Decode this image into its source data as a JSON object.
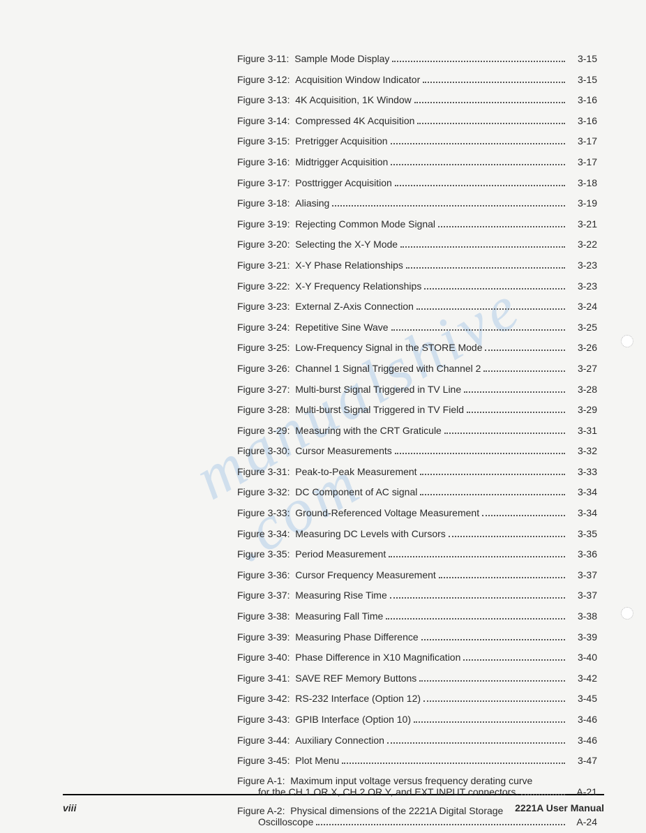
{
  "watermark_text": "manualshive .com",
  "footer": {
    "page_number": "viii",
    "manual_title": "2221A User Manual"
  },
  "entries": [
    {
      "label": "Figure 3-11:",
      "title": "Sample Mode Display",
      "page": "3-15"
    },
    {
      "label": "Figure 3-12:",
      "title": "Acquisition Window Indicator",
      "page": "3-15"
    },
    {
      "label": "Figure 3-13:",
      "title": "4K Acquisition, 1K Window",
      "page": "3-16"
    },
    {
      "label": "Figure 3-14:",
      "title": "Compressed 4K Acquisition",
      "page": "3-16"
    },
    {
      "label": "Figure 3-15:",
      "title": "Pretrigger Acquisition",
      "page": "3-17"
    },
    {
      "label": "Figure 3-16:",
      "title": "Midtrigger Acquisition",
      "page": "3-17"
    },
    {
      "label": "Figure 3-17:",
      "title": "Posttrigger Acquisition",
      "page": "3-18"
    },
    {
      "label": "Figure 3-18:",
      "title": "Aliasing",
      "page": "3-19"
    },
    {
      "label": "Figure 3-19:",
      "title": "Rejecting Common Mode Signal",
      "page": "3-21"
    },
    {
      "label": "Figure 3-20:",
      "title": "Selecting the X-Y Mode",
      "page": "3-22"
    },
    {
      "label": "Figure 3-21:",
      "title": "X-Y Phase Relationships",
      "page": "3-23"
    },
    {
      "label": "Figure 3-22:",
      "title": "X-Y Frequency Relationships",
      "page": "3-23"
    },
    {
      "label": "Figure 3-23:",
      "title": "External Z-Axis Connection",
      "page": "3-24"
    },
    {
      "label": "Figure 3-24:",
      "title": "Repetitive Sine Wave",
      "page": "3-25"
    },
    {
      "label": "Figure 3-25:",
      "title": "Low-Frequency Signal in the STORE Mode",
      "page": "3-26"
    },
    {
      "label": "Figure 3-26:",
      "title": "Channel 1 Signal Triggered with Channel 2",
      "page": "3-27"
    },
    {
      "label": "Figure 3-27:",
      "title": "Multi-burst Signal Triggered in TV Line",
      "page": "3-28"
    },
    {
      "label": "Figure 3-28:",
      "title": "Multi-burst Signal Triggered in TV Field",
      "page": "3-29"
    },
    {
      "label": "Figure 3-29:",
      "title": "Measuring with the CRT Graticule",
      "page": "3-31"
    },
    {
      "label": "Figure 3-30:",
      "title": "Cursor Measurements",
      "page": "3-32"
    },
    {
      "label": "Figure 3-31:",
      "title": "Peak-to-Peak Measurement",
      "page": "3-33"
    },
    {
      "label": "Figure 3-32:",
      "title": "DC Component of AC signal",
      "page": "3-34"
    },
    {
      "label": "Figure 3-33:",
      "title": "Ground-Referenced Voltage Measurement",
      "page": "3-34"
    },
    {
      "label": "Figure 3-34:",
      "title": "Measuring DC Levels with Cursors",
      "page": "3-35"
    },
    {
      "label": "Figure 3-35:",
      "title": "Period Measurement",
      "page": "3-36"
    },
    {
      "label": "Figure 3-36:",
      "title": "Cursor Frequency Measurement",
      "page": "3-37"
    },
    {
      "label": "Figure 3-37:",
      "title": "Measuring Rise Time",
      "page": "3-37"
    },
    {
      "label": "Figure 3-38:",
      "title": "Measuring Fall Time",
      "page": "3-38"
    },
    {
      "label": "Figure 3-39:",
      "title": "Measuring Phase Difference",
      "page": "3-39"
    },
    {
      "label": "Figure 3-40:",
      "title": "Phase Difference in X10 Magnification",
      "page": "3-40"
    },
    {
      "label": "Figure 3-41:",
      "title": "SAVE REF Memory Buttons",
      "page": "3-42"
    },
    {
      "label": "Figure 3-42:",
      "title": "RS-232 Interface (Option 12)",
      "page": "3-45"
    },
    {
      "label": "Figure 3-43:",
      "title": "GPIB Interface (Option 10)",
      "page": "3-46"
    },
    {
      "label": "Figure 3-44:",
      "title": "Auxiliary Connection",
      "page": "3-46"
    },
    {
      "label": "Figure 3-45:",
      "title": "Plot Menu",
      "page": "3-47"
    }
  ],
  "multiline_entries": [
    {
      "label": "Figure A-1:",
      "title_line1": "Maximum input voltage versus frequency derating curve",
      "title_line2": "for the CH 1 OR X, CH 2 OR Y, and EXT INPUT connectors.",
      "page": "A-21"
    },
    {
      "label": "Figure A-2:",
      "title_line1": "Physical dimensions of the 2221A Digital Storage",
      "title_line2": "Oscilloscope",
      "page": "A-24"
    }
  ]
}
